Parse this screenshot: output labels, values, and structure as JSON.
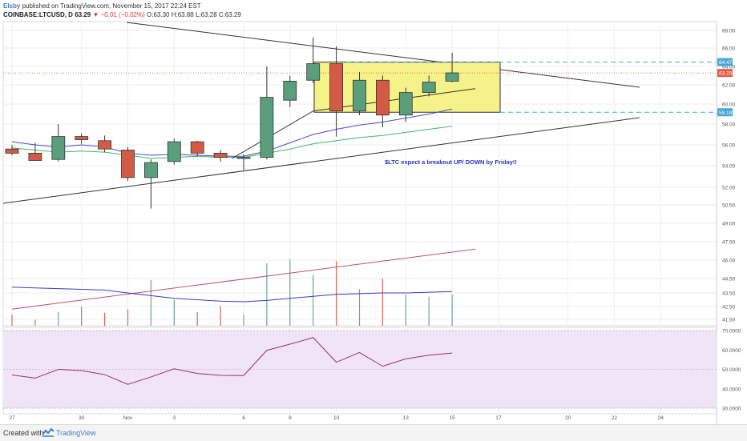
{
  "header": {
    "user": "Elsby",
    "published": "published on TradingView.com, November 15, 2017 22:24 EST",
    "symbol": "COINBASE:LTCUSD, D",
    "last": "63.29",
    "change_arrow": "▼",
    "change": "−0.01 (−0.02%)",
    "ohlc": "O:63.30 H:63.88 L:63.28 C:63.29"
  },
  "footer": {
    "created_with": "Created with",
    "brand": "TradingView"
  },
  "colors": {
    "up": "#5a9e7c",
    "down": "#d35a45",
    "ma_blue": "#4b49c8",
    "ma_green": "#41b66b",
    "trend": "#333333",
    "box": "#f5f28a",
    "rsi_bg": "#f0e4f7",
    "rsi_line": "#a03060",
    "vol_ma_pink": "#c05070",
    "vol_ma_blue": "#3b3bbf",
    "last_price": "#e05a4a",
    "level": "#45a8d4"
  },
  "chart_data": [
    {
      "type": "candlestick",
      "title": "COINBASE:LTCUSD, D",
      "x": [
        "Oct 27",
        "Oct 28",
        "Oct 29",
        "Oct 30",
        "Oct 31",
        "Nov 1",
        "Nov 2",
        "Nov 3",
        "Nov 4",
        "Nov 5",
        "Nov 6",
        "Nov 7",
        "Nov 8",
        "Nov 9",
        "Nov 10",
        "Nov 11",
        "Nov 12",
        "Nov 13",
        "Nov 14",
        "Nov 15"
      ],
      "ohlc": [
        [
          55.6,
          56.0,
          55.0,
          55.2
        ],
        [
          55.2,
          56.2,
          54.5,
          54.5
        ],
        [
          54.6,
          58.0,
          54.4,
          56.8
        ],
        [
          56.8,
          57.1,
          56.1,
          56.5
        ],
        [
          56.4,
          56.9,
          55.3,
          55.6
        ],
        [
          55.5,
          55.8,
          52.6,
          52.9
        ],
        [
          52.9,
          54.6,
          50.2,
          54.3
        ],
        [
          54.4,
          56.6,
          54.1,
          56.3
        ],
        [
          56.3,
          56.4,
          54.9,
          55.2
        ],
        [
          55.2,
          55.5,
          54.4,
          54.8
        ],
        [
          54.8,
          55.1,
          53.6,
          54.8
        ],
        [
          54.8,
          64.0,
          54.6,
          60.7
        ],
        [
          60.4,
          63.0,
          59.7,
          62.4
        ],
        [
          62.5,
          67.2,
          62.2,
          64.3
        ],
        [
          64.3,
          66.2,
          56.8,
          59.3
        ],
        [
          59.3,
          63.4,
          58.9,
          62.5
        ],
        [
          62.5,
          63.0,
          57.7,
          58.9
        ],
        [
          58.9,
          61.7,
          58.2,
          61.2
        ],
        [
          61.2,
          63.0,
          60.8,
          62.3
        ],
        [
          62.4,
          65.5,
          62.3,
          63.3
        ]
      ],
      "y_axis_ticks": [
        41.5,
        42.5,
        43.5,
        44.5,
        46.0,
        47.5,
        49.0,
        50.5,
        52.0,
        54.0,
        56.0,
        58.0,
        60.0,
        62.0,
        64.0,
        66.0,
        68.0
      ],
      "x_axis_ticks": [
        "27",
        "30",
        "Nov",
        "3",
        "6",
        "8",
        "10",
        "13",
        "15",
        "17",
        "20",
        "22",
        "24"
      ],
      "price_labels": {
        "last": "63.29",
        "level_high": "64.47",
        "level_low": "59.18"
      },
      "annotation": "$LTC expect a breakout UP/ DOWN by Friday!!",
      "series": [
        {
          "values": [
            56.3,
            56.0,
            55.8,
            56.0,
            55.8,
            55.2,
            55.0,
            55.1,
            55.0,
            54.9,
            54.9,
            55.4,
            56.2,
            57.0,
            57.5,
            57.9,
            58.2,
            58.6,
            59.0,
            59.5
          ]
        },
        {
          "values": [
            55.7,
            55.5,
            55.3,
            55.4,
            55.3,
            55.0,
            54.7,
            54.8,
            54.9,
            54.8,
            54.8,
            55.2,
            55.6,
            56.1,
            56.4,
            56.7,
            56.9,
            57.2,
            57.5,
            57.8
          ]
        }
      ],
      "volume": [
        0.15,
        0.08,
        0.18,
        0.25,
        0.17,
        0.22,
        0.6,
        0.34,
        0.18,
        0.26,
        0.15,
        0.82,
        0.87,
        0.67,
        0.85,
        0.48,
        0.62,
        0.41,
        0.38,
        0.41
      ]
    },
    {
      "type": "line",
      "title": "",
      "y_axis_ticks": [
        30.0,
        40.0,
        50.0,
        60.0,
        70.0
      ],
      "x": [
        "Oct 27",
        "Oct 28",
        "Oct 29",
        "Oct 30",
        "Oct 31",
        "Nov 1",
        "Nov 2",
        "Nov 3",
        "Nov 4",
        "Nov 5",
        "Nov 6",
        "Nov 7",
        "Nov 8",
        "Nov 9",
        "Nov 10",
        "Nov 11",
        "Nov 12",
        "Nov 13",
        "Nov 14",
        "Nov 15"
      ],
      "values": [
        47.1,
        45.5,
        50.0,
        49.4,
        47.3,
        42.3,
        46.1,
        50.3,
        47.9,
        46.9,
        46.8,
        59.8,
        63.0,
        66.4,
        53.7,
        58.7,
        51.6,
        55.4,
        57.3,
        58.4
      ]
    }
  ]
}
